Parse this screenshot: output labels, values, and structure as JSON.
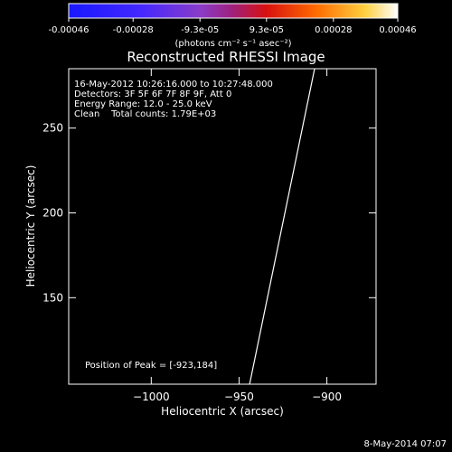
{
  "colorbar": {
    "tick_labels": [
      "-0.00046",
      "-0.00028",
      "-9.3e-05",
      "9.3e-05",
      "0.00028",
      "0.00046"
    ],
    "tick_values": [
      -0.00046,
      -0.00028,
      -9.3e-05,
      9.3e-05,
      0.00028,
      0.00046
    ],
    "range": [
      -0.00046,
      0.00046
    ],
    "colormap": "blue-purple-red-yellow-white",
    "unit_label": "(photons cm⁻² s⁻¹ asec⁻²)"
  },
  "chart_data": {
    "type": "heatmap",
    "title": "Reconstructed RHESSI Image",
    "xlabel": "Heliocentric X (arcsec)",
    "ylabel": "Heliocentric Y (arcsec)",
    "xlim": [
      -1047,
      -872
    ],
    "ylim": [
      99,
      285
    ],
    "x_ticks": [
      -1000,
      -950,
      -900
    ],
    "x_tick_labels": [
      "−1000",
      "−950",
      "−900"
    ],
    "y_ticks": [
      150,
      200,
      250
    ],
    "y_tick_labels": [
      "150",
      "200",
      "250"
    ],
    "peak": {
      "x": -923,
      "y": 184
    },
    "limb_line": [
      [
        -944,
        99
      ],
      [
        -907,
        285
      ]
    ],
    "info_lines": [
      "16-May-2012 10:26:16.000 to 10:27:48.000",
      "Detectors: 3F 5F 6F 7F 8F 9F, Att 0",
      "Energy Range: 12.0 - 25.0 keV",
      "Clean    Total counts: 1.79E+03"
    ],
    "peak_label": "Position of Peak = [-923,184]",
    "grid": false
  },
  "footer": {
    "timestamp": "8-May-2014 07:07"
  }
}
